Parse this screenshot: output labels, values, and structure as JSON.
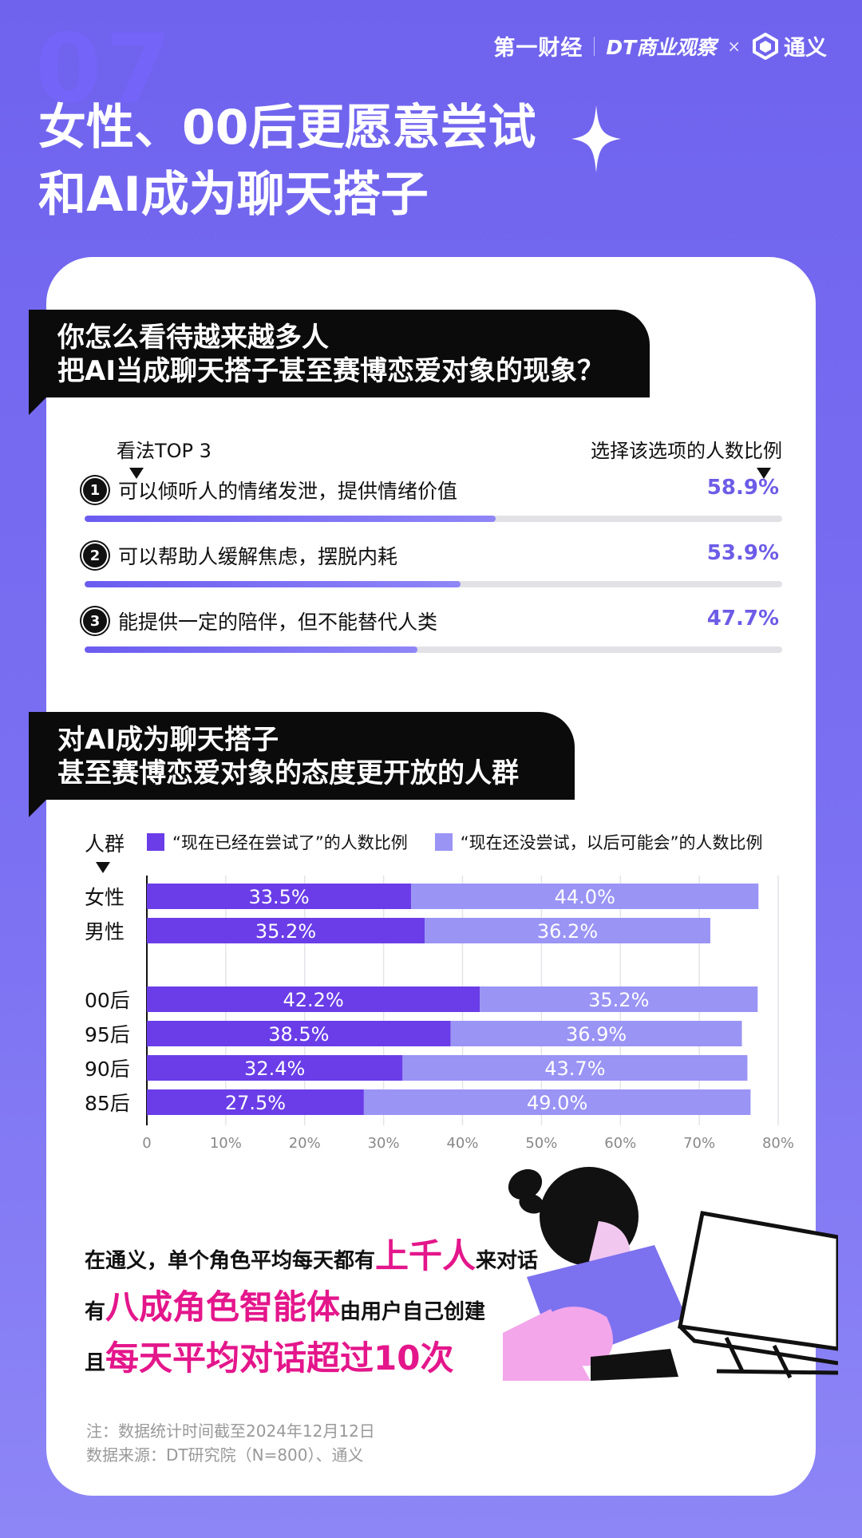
{
  "header": {
    "bg_number": "07",
    "title_line1": "女性、00后更愿意尝试",
    "title_line2": "和AI成为聊天搭子",
    "logo_yicai": "第一财经",
    "logo_dt": "DT商业观察",
    "logo_x": "×",
    "logo_tongyi": "通义"
  },
  "section1": {
    "question_line1": "你怎么看待越来越多人",
    "question_line2": "把AI当成聊天搭子甚至赛博恋爱对象的现象？",
    "left_header": "看法TOP 3",
    "right_header": "选择该选项的人数比例",
    "items": [
      {
        "num": "1",
        "label": "可以倾听人的情绪发泄，提供情绪价值",
        "pct_text": "58.9%",
        "value": 58.9
      },
      {
        "num": "2",
        "label": "可以帮助人缓解焦虑，摆脱内耗",
        "pct_text": "53.9%",
        "value": 53.9
      },
      {
        "num": "3",
        "label": "能提供一定的陪伴，但不能替代人类",
        "pct_text": "47.7%",
        "value": 47.7
      }
    ]
  },
  "section2": {
    "question_line1": "对AI成为聊天搭子",
    "question_line2": "甚至赛博恋爱对象的态度更开放的人群",
    "axis_group_label": "人群",
    "legend_tried": "“现在已经在尝试了”的人数比例",
    "legend_maybe": "“现在还没尝试，以后可能会”的人数比例"
  },
  "chart_data": {
    "type": "bar",
    "orientation": "horizontal",
    "stacked": true,
    "categories": [
      "女性",
      "男性",
      "00后",
      "95后",
      "90后",
      "85后"
    ],
    "series": [
      {
        "name": "“现在已经在尝试了”的人数比例",
        "values": [
          33.5,
          35.2,
          42.2,
          38.5,
          32.4,
          27.5
        ],
        "labels": [
          "33.5%",
          "35.2%",
          "42.2%",
          "38.5%",
          "32.4%",
          "27.5%"
        ],
        "color": "#6a3de8"
      },
      {
        "name": "“现在还没尝试，以后可能会”的人数比例",
        "values": [
          44.0,
          36.2,
          35.2,
          36.9,
          43.7,
          49.0
        ],
        "labels": [
          "44.0%",
          "36.2%",
          "35.2%",
          "36.9%",
          "43.7%",
          "49.0%"
        ],
        "color": "#9a94f5"
      }
    ],
    "xlim": [
      0,
      80
    ],
    "xticks": [
      0,
      10,
      20,
      30,
      40,
      50,
      60,
      70,
      80
    ],
    "xtick_labels": [
      "0",
      "10%",
      "20%",
      "30%",
      "40%",
      "50%",
      "60%",
      "70%",
      "80%"
    ],
    "grid": true,
    "legend_position": "top"
  },
  "facts": {
    "line1_pre": "在通义，单个角色平均每天都有",
    "line1_hl": "上千人",
    "line1_post": "来对话",
    "line2_pre": "有",
    "line2_hl": "八成角色智能体",
    "line2_post": "由用户自己创建",
    "line3_pre": "且",
    "line3_hl": "每天平均对话超过10次"
  },
  "notes": {
    "note1": "注：数据统计时间截至2024年12月12日",
    "note2": "数据来源：DT研究院（N=800）、通义"
  },
  "colors": {
    "bg": "#7468ef",
    "accent": "#6c5ce7",
    "highlight": "#e4168b",
    "tried": "#6a3de8",
    "maybe": "#9a94f5"
  }
}
